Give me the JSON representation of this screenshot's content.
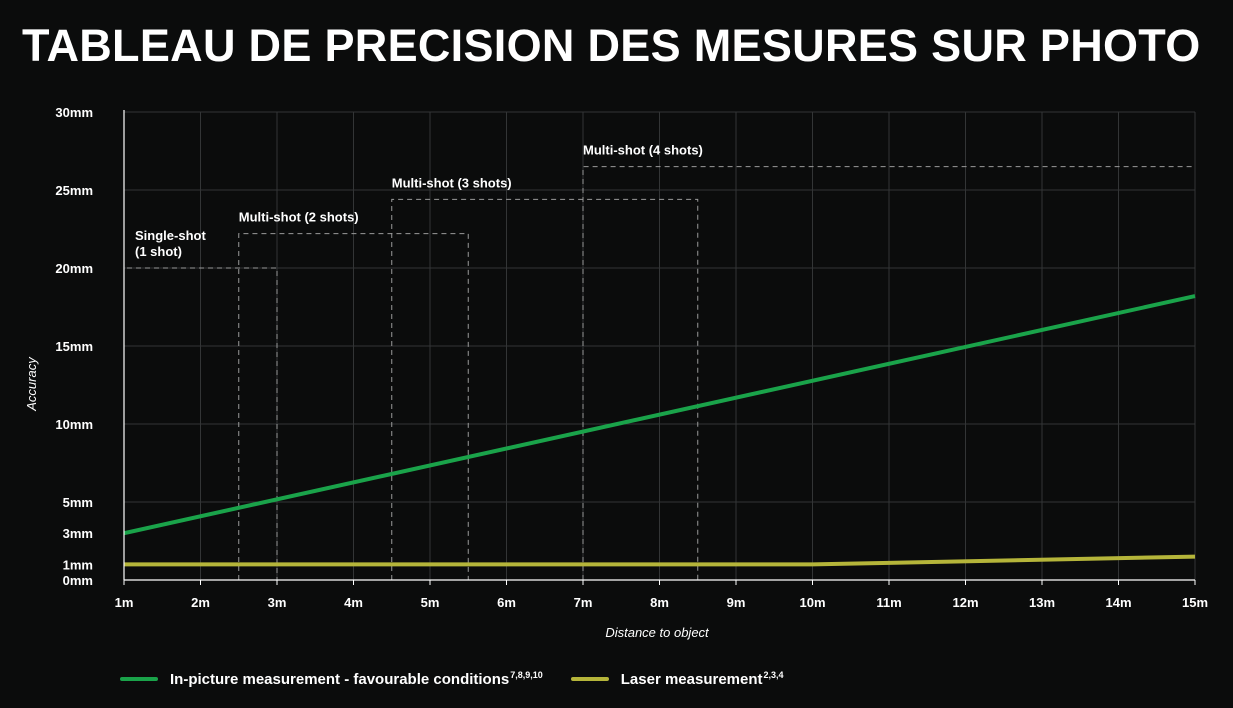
{
  "title": "TABLEAU DE PRECISION DES MESURES SUR PHOTO",
  "colors": {
    "background": "#0b0c0c",
    "grid": "#333536",
    "green": "#1aa34a",
    "yellow": "#b5b53a",
    "dash": "#9a9a9a"
  },
  "chart_data": {
    "type": "line",
    "xlabel": "Distance to object",
    "ylabel": "Accuracy",
    "x": [
      1,
      15
    ],
    "xlim": [
      1,
      15
    ],
    "ylim": [
      0,
      30
    ],
    "x_ticks": [
      {
        "v": 1,
        "label": "1m"
      },
      {
        "v": 2,
        "label": "2m"
      },
      {
        "v": 3,
        "label": "3m"
      },
      {
        "v": 4,
        "label": "4m"
      },
      {
        "v": 5,
        "label": "5m"
      },
      {
        "v": 6,
        "label": "6m"
      },
      {
        "v": 7,
        "label": "7m"
      },
      {
        "v": 8,
        "label": "8m"
      },
      {
        "v": 9,
        "label": "9m"
      },
      {
        "v": 10,
        "label": "10m"
      },
      {
        "v": 11,
        "label": "11m"
      },
      {
        "v": 12,
        "label": "12m"
      },
      {
        "v": 13,
        "label": "13m"
      },
      {
        "v": 14,
        "label": "14m"
      },
      {
        "v": 15,
        "label": "15m"
      }
    ],
    "y_ticks": [
      {
        "v": 0,
        "label": "0mm"
      },
      {
        "v": 1,
        "label": "1mm"
      },
      {
        "v": 3,
        "label": "3mm"
      },
      {
        "v": 5,
        "label": "5mm"
      },
      {
        "v": 10,
        "label": "10mm"
      },
      {
        "v": 15,
        "label": "15mm"
      },
      {
        "v": 20,
        "label": "20mm"
      },
      {
        "v": 25,
        "label": "25mm"
      },
      {
        "v": 30,
        "label": "30mm"
      }
    ],
    "y_grid": [
      5,
      10,
      15,
      20,
      25,
      30
    ],
    "series": [
      {
        "name": "In-picture measurement - favourable conditions",
        "superscript": "7,8,9,10",
        "color": "#1aa34a",
        "points": [
          [
            1,
            3
          ],
          [
            15,
            18.2
          ]
        ]
      },
      {
        "name": "Laser measurement",
        "superscript": "2,3,4",
        "color": "#b5b53a",
        "points": [
          [
            1,
            1
          ],
          [
            10,
            1
          ],
          [
            11,
            1.1
          ],
          [
            15,
            1.5
          ]
        ]
      }
    ],
    "zones": [
      {
        "label": [
          "Single-shot",
          "(1 shot)"
        ],
        "x_start": 1,
        "x_end": 3,
        "y": 20
      },
      {
        "label": [
          "Multi-shot (2 shots)"
        ],
        "x_start": 2.5,
        "x_end": 5.5,
        "y": 22.2
      },
      {
        "label": [
          "Multi-shot (3 shots)"
        ],
        "x_start": 4.5,
        "x_end": 8.5,
        "y": 24.4
      },
      {
        "label": [
          "Multi-shot (4 shots)"
        ],
        "x_start": 7,
        "x_end": 15,
        "y": 26.5
      }
    ],
    "grid": true,
    "legend_position": "bottom-left"
  }
}
